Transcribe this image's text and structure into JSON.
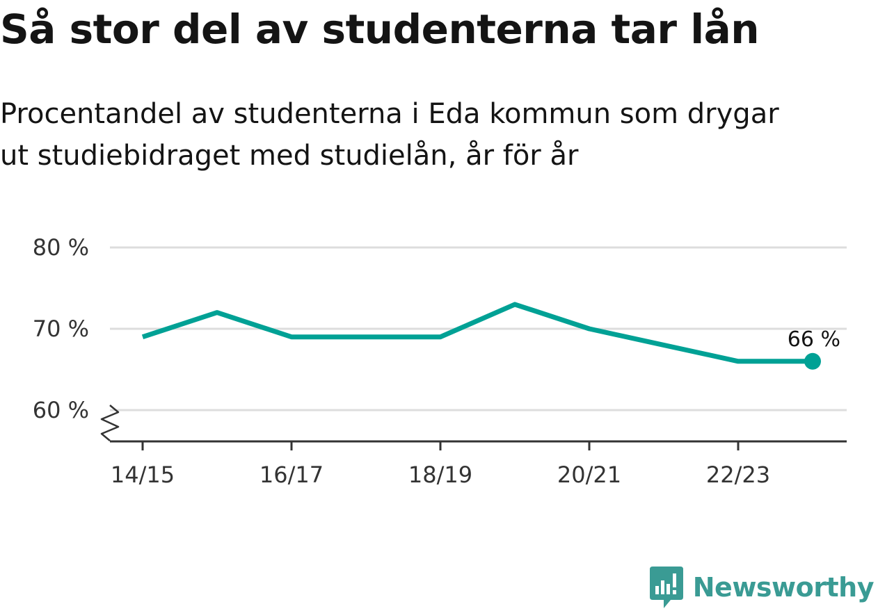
{
  "title": "Så stor del av studenterna tar lån",
  "subtitle_lines": [
    "Procentandel av studenterna i Eda kommun som drygar",
    "ut studiebidraget med studielån, år för år"
  ],
  "brand": "Newsworthy",
  "colors": {
    "line": "#00a195",
    "grid": "#dddddd",
    "axis": "#333333",
    "brand": "#3a9b94"
  },
  "chart_data": {
    "type": "line",
    "title": "Så stor del av studenterna tar lån",
    "xlabel": "",
    "ylabel": "",
    "x": [
      "14/15",
      "15/16",
      "16/17",
      "17/18",
      "18/19",
      "19/20",
      "20/21",
      "21/22",
      "22/23",
      "23/24"
    ],
    "series": [
      {
        "values": [
          69,
          72,
          69,
          69,
          69,
          73,
          70,
          68,
          66,
          66
        ]
      }
    ],
    "x_tick_labels": [
      "14/15",
      "16/17",
      "18/19",
      "20/21",
      "22/23"
    ],
    "y_ticks": [
      60,
      70,
      80
    ],
    "y_tick_labels": [
      "60 %",
      "70 %",
      "80 %"
    ],
    "ylim": [
      60,
      80
    ],
    "y_axis_break": true,
    "grid": true,
    "last_value_label": "66 %"
  }
}
